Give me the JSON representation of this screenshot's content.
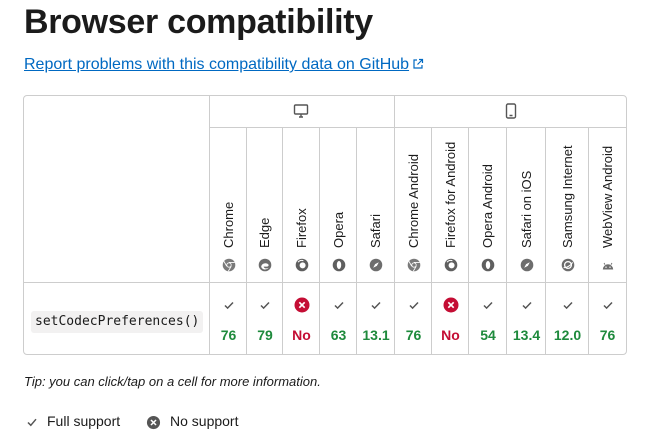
{
  "page": {
    "title": "Browser compatibility",
    "report_link": "Report problems with this compatibility data on GitHub"
  },
  "platforms": [
    {
      "name": "desktop",
      "icon": "desktop-icon"
    },
    {
      "name": "mobile",
      "icon": "mobile-icon"
    }
  ],
  "browsers": [
    {
      "name": "Chrome",
      "icon": "chrome-icon"
    },
    {
      "name": "Edge",
      "icon": "edge-icon"
    },
    {
      "name": "Firefox",
      "icon": "firefox-icon"
    },
    {
      "name": "Opera",
      "icon": "opera-icon"
    },
    {
      "name": "Safari",
      "icon": "safari-icon"
    },
    {
      "name": "Chrome Android",
      "icon": "chrome-icon"
    },
    {
      "name": "Firefox for Android",
      "icon": "firefox-icon"
    },
    {
      "name": "Opera Android",
      "icon": "opera-icon"
    },
    {
      "name": "Safari on iOS",
      "icon": "safari-icon"
    },
    {
      "name": "Samsung Internet",
      "icon": "samsung-internet-icon"
    },
    {
      "name": "WebView Android",
      "icon": "android-icon"
    }
  ],
  "feature": {
    "name": "setCodecPreferences()",
    "support": [
      {
        "status": "yes",
        "version": "76"
      },
      {
        "status": "yes",
        "version": "79"
      },
      {
        "status": "no",
        "version": "No"
      },
      {
        "status": "yes",
        "version": "63"
      },
      {
        "status": "yes",
        "version": "13.1"
      },
      {
        "status": "yes",
        "version": "76"
      },
      {
        "status": "no",
        "version": "No"
      },
      {
        "status": "yes",
        "version": "54"
      },
      {
        "status": "yes",
        "version": "13.4"
      },
      {
        "status": "yes",
        "version": "12.0"
      },
      {
        "status": "yes",
        "version": "76"
      }
    ]
  },
  "tip": "Tip: you can click/tap on a cell for more information.",
  "legend": {
    "full_support": "Full support",
    "no_support": "No support"
  },
  "colors": {
    "yes": "#1e8a3c",
    "no": "#c40d34",
    "link": "#0069c2"
  }
}
